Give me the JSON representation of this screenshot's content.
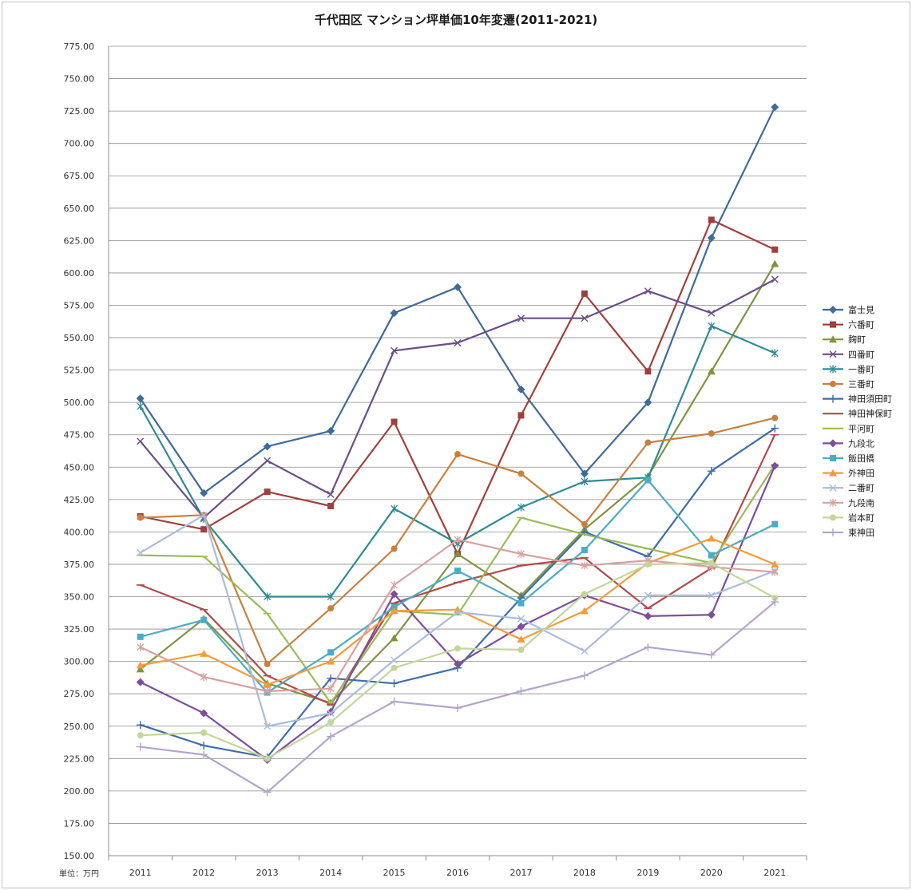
{
  "chart_data": {
    "type": "line",
    "title": "千代田区 マンション坪単価10年変遷(2011-2021)",
    "unit_label": "単位：万円",
    "x": [
      "2011",
      "2012",
      "2013",
      "2014",
      "2015",
      "2016",
      "2017",
      "2018",
      "2019",
      "2020",
      "2021"
    ],
    "ylim": [
      150,
      775
    ],
    "yticks": [
      "150.00",
      "175.00",
      "200.00",
      "225.00",
      "250.00",
      "275.00",
      "300.00",
      "325.00",
      "350.00",
      "375.00",
      "400.00",
      "425.00",
      "450.00",
      "475.00",
      "500.00",
      "525.00",
      "550.00",
      "575.00",
      "600.00",
      "625.00",
      "650.00",
      "675.00",
      "700.00",
      "725.00",
      "750.00",
      "775.00"
    ],
    "grid": true,
    "legend_position": "right",
    "series": [
      {
        "name": "富士見",
        "color": "#3f6a9a",
        "marker": "diamond",
        "values": [
          503,
          430,
          466,
          478,
          569,
          589,
          510,
          445,
          500,
          627,
          728
        ]
      },
      {
        "name": "六番町",
        "color": "#a0403c",
        "marker": "square",
        "values": [
          412,
          402,
          431,
          420,
          485,
          383,
          490,
          584,
          524,
          641,
          618
        ]
      },
      {
        "name": "麹町",
        "color": "#7f9440",
        "marker": "triangle",
        "values": [
          294,
          333,
          283,
          268,
          318,
          383,
          351,
          402,
          443,
          524,
          607
        ]
      },
      {
        "name": "四番町",
        "color": "#6a4e8a",
        "marker": "x",
        "values": [
          470,
          411,
          455,
          429,
          540,
          546,
          565,
          565,
          586,
          569,
          595
        ]
      },
      {
        "name": "一番町",
        "color": "#2e8b94",
        "marker": "star",
        "values": [
          497,
          410,
          350,
          350,
          418,
          391,
          419,
          439,
          442,
          559,
          538
        ]
      },
      {
        "name": "三番町",
        "color": "#c8803e",
        "marker": "circle",
        "values": [
          411,
          413,
          298,
          341,
          387,
          460,
          445,
          406,
          469,
          476,
          488
        ]
      },
      {
        "name": "神田須田町",
        "color": "#3f6da8",
        "marker": "plus",
        "values": [
          251,
          235,
          226,
          287,
          283,
          295,
          349,
          400,
          381,
          447,
          480
        ]
      },
      {
        "name": "神田神保町",
        "color": "#b04a4a",
        "marker": "dash",
        "values": [
          359,
          340,
          289,
          267,
          345,
          361,
          374,
          380,
          341,
          372,
          475
        ]
      },
      {
        "name": "平河町",
        "color": "#9abb58",
        "marker": "dash",
        "values": [
          382,
          381,
          337,
          268,
          339,
          336,
          411,
          398,
          387,
          376,
          452
        ]
      },
      {
        "name": "九段北",
        "color": "#7d4f9a",
        "marker": "diamond",
        "values": [
          284,
          260,
          224,
          261,
          352,
          298,
          327,
          351,
          335,
          336,
          451
        ]
      },
      {
        "name": "飯田橋",
        "color": "#4bacc6",
        "marker": "square",
        "values": [
          319,
          332,
          276,
          307,
          342,
          370,
          345,
          386,
          440,
          382,
          406
        ]
      },
      {
        "name": "外神田",
        "color": "#f59b3a",
        "marker": "triangle",
        "values": [
          297,
          306,
          282,
          300,
          339,
          340,
          317,
          339,
          376,
          395,
          375
        ]
      },
      {
        "name": "二番町",
        "color": "#a9bcdc",
        "marker": "x",
        "values": [
          384,
          413,
          250,
          260,
          301,
          338,
          333,
          308,
          351,
          351,
          370
        ]
      },
      {
        "name": "九段南",
        "color": "#d9a09e",
        "marker": "star",
        "values": [
          311,
          288,
          277,
          279,
          359,
          394,
          383,
          374,
          378,
          373,
          369
        ]
      },
      {
        "name": "岩本町",
        "color": "#c3d69b",
        "marker": "circle",
        "values": [
          243,
          245,
          225,
          253,
          295,
          310,
          309,
          352,
          375,
          376,
          349
        ]
      },
      {
        "name": "東神田",
        "color": "#b3a6c9",
        "marker": "plus",
        "values": [
          234,
          228,
          199,
          242,
          269,
          264,
          277,
          289,
          311,
          305,
          346
        ]
      }
    ]
  }
}
